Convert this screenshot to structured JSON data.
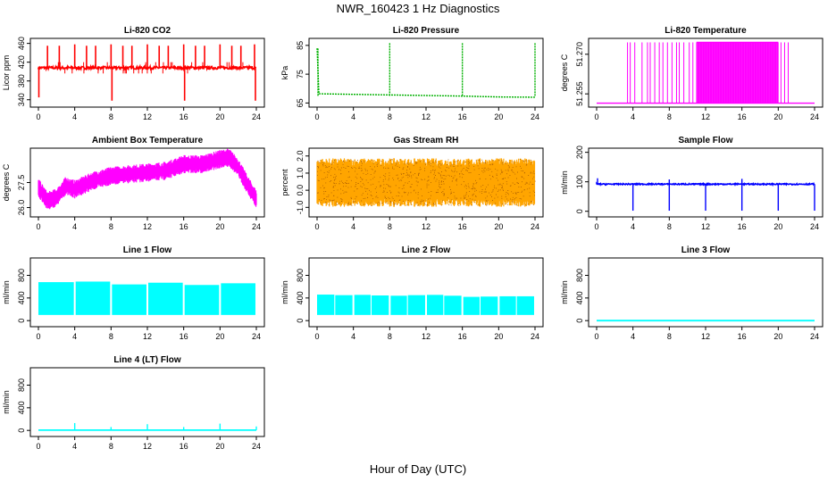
{
  "title": "NWR_160423  1 Hz Diagnostics",
  "xlabel": "Hour of Day (UTC)",
  "colors": {
    "red": "#ff0000",
    "green": "#00b000",
    "magenta": "#ff00ff",
    "orange": "#ffa500",
    "blue": "#0000ff",
    "cyan": "#00ffff"
  },
  "chart_data": [
    {
      "type": "line",
      "title": "Li-820 CO2",
      "ylabel": "Licor ppm",
      "color": "#ff0000",
      "xticks": [
        0,
        4,
        8,
        12,
        16,
        20,
        24
      ],
      "yticks": [
        "340",
        "380",
        "420",
        "460"
      ],
      "ylim": [
        330,
        465
      ],
      "baseline": 408,
      "spikes": [
        {
          "x": 1.0,
          "y": 455
        },
        {
          "x": 2.3,
          "y": 455
        },
        {
          "x": 4.0,
          "y": 458
        },
        {
          "x": 5.3,
          "y": 455
        },
        {
          "x": 6.3,
          "y": 455
        },
        {
          "x": 8.0,
          "y": 458
        },
        {
          "x": 8.1,
          "y": 338
        },
        {
          "x": 9.3,
          "y": 455
        },
        {
          "x": 10.3,
          "y": 455
        },
        {
          "x": 12.0,
          "y": 458
        },
        {
          "x": 13.3,
          "y": 455
        },
        {
          "x": 14.3,
          "y": 455
        },
        {
          "x": 16.0,
          "y": 458
        },
        {
          "x": 16.1,
          "y": 338
        },
        {
          "x": 17.3,
          "y": 455
        },
        {
          "x": 18.3,
          "y": 455
        },
        {
          "x": 20.0,
          "y": 458
        },
        {
          "x": 21.3,
          "y": 455
        },
        {
          "x": 22.3,
          "y": 455
        },
        {
          "x": 23.8,
          "y": 458
        },
        {
          "x": 23.9,
          "y": 338
        },
        {
          "x": 0.05,
          "y": 345
        }
      ]
    },
    {
      "type": "line",
      "title": "Li-820 Pressure",
      "ylabel": "kPa",
      "color": "#00b000",
      "xticks": [
        0,
        4,
        8,
        12,
        16,
        20,
        24
      ],
      "yticks": [
        "65",
        "75",
        "85"
      ],
      "ylim": [
        64.5,
        86.5
      ],
      "series_points": [
        [
          0,
          84
        ],
        [
          0.2,
          68.2
        ],
        [
          4,
          68.0
        ],
        [
          8,
          67.8
        ],
        [
          12,
          67.6
        ],
        [
          16,
          67.4
        ],
        [
          20,
          67.1
        ],
        [
          24,
          67.0
        ]
      ],
      "spikes": [
        {
          "x": 0.1,
          "y": 84
        },
        {
          "x": 8.0,
          "y": 86
        },
        {
          "x": 16.0,
          "y": 86
        },
        {
          "x": 24.0,
          "y": 86
        }
      ]
    },
    {
      "type": "line",
      "title": "Li-820 Temperature",
      "ylabel": "degrees C",
      "color": "#ff00ff",
      "xticks": [
        0,
        4,
        8,
        12,
        16,
        20,
        24
      ],
      "yticks": [
        "51.255",
        "51.270"
      ],
      "ylim": [
        51.251,
        51.275
      ],
      "baseline": 51.2515,
      "top": 51.2745,
      "dense_range": [
        11,
        20
      ],
      "spike_x": [
        3.4,
        3.7,
        4.2,
        5.0,
        5.6,
        5.9,
        6.4,
        6.9,
        7.3,
        7.8,
        8.3,
        8.8,
        9.1,
        9.6,
        10.2,
        10.6,
        20.3,
        20.7,
        21.1
      ]
    },
    {
      "type": "line",
      "title": "Ambient Box Temperature",
      "ylabel": "degrees C",
      "color": "#ff00ff",
      "xticks": [
        0,
        4,
        8,
        12,
        16,
        20,
        24
      ],
      "yticks": [
        "26.0",
        "27.5"
      ],
      "ylim": [
        25.6,
        29.4
      ],
      "series_points": [
        [
          0,
          27.2
        ],
        [
          1,
          26.4
        ],
        [
          2,
          26.6
        ],
        [
          3,
          27.3
        ],
        [
          4,
          27.1
        ],
        [
          6,
          27.6
        ],
        [
          8,
          27.9
        ],
        [
          10,
          28.0
        ],
        [
          12,
          28.1
        ],
        [
          14,
          28.2
        ],
        [
          16,
          28.6
        ],
        [
          18,
          28.6
        ],
        [
          20,
          28.9
        ],
        [
          21,
          29.0
        ],
        [
          22,
          28.4
        ],
        [
          23,
          27.4
        ],
        [
          24,
          26.5
        ]
      ],
      "amplitude": 0.55
    },
    {
      "type": "line",
      "title": "Gas Stream RH",
      "ylabel": "percent",
      "color": "#ffa500",
      "dotcolor": "#b06000",
      "xticks": [
        0,
        4,
        8,
        12,
        16,
        20,
        24
      ],
      "yticks": [
        "-1.0",
        "0.0",
        "1.0",
        "2.0"
      ],
      "ylim": [
        -1.4,
        2.3
      ],
      "center": 0.45,
      "amplitude": 1.35
    },
    {
      "type": "line",
      "title": "Sample Flow",
      "ylabel": "ml/min",
      "color": "#0000ff",
      "xticks": [
        0,
        4,
        8,
        12,
        16,
        20,
        24
      ],
      "yticks": [
        "0",
        "100",
        "200"
      ],
      "ylim": [
        -10,
        205
      ],
      "baseline": 92,
      "dips": [
        {
          "x": 4.0,
          "y": 2
        },
        {
          "x": 8.0,
          "y": 2
        },
        {
          "x": 12.0,
          "y": 2
        },
        {
          "x": 16.0,
          "y": 2
        },
        {
          "x": 20.0,
          "y": 2
        },
        {
          "x": 24.0,
          "y": 2
        }
      ],
      "peaks": [
        {
          "x": 0.1,
          "y": 112
        },
        {
          "x": 8.0,
          "y": 108
        },
        {
          "x": 16.0,
          "y": 110
        }
      ]
    },
    {
      "type": "area",
      "title": "Line 1 Flow",
      "ylabel": "ml/min",
      "color": "#00ffff",
      "xticks": [
        0,
        4,
        8,
        12,
        16,
        20,
        24
      ],
      "yticks": [
        "0",
        "400",
        "800"
      ],
      "ylim": [
        -60,
        1060
      ],
      "bands": [
        {
          "x0": 0,
          "x1": 3.9,
          "low": 100,
          "high": 680
        },
        {
          "x0": 4.1,
          "x1": 7.9,
          "low": 100,
          "high": 690
        },
        {
          "x0": 8.1,
          "x1": 11.9,
          "low": 100,
          "high": 640
        },
        {
          "x0": 12.1,
          "x1": 15.9,
          "low": 100,
          "high": 670
        },
        {
          "x0": 16.1,
          "x1": 19.9,
          "low": 100,
          "high": 630
        },
        {
          "x0": 20.1,
          "x1": 23.9,
          "low": 100,
          "high": 660
        }
      ]
    },
    {
      "type": "area",
      "title": "Line 2 Flow",
      "ylabel": "ml/min",
      "color": "#00ffff",
      "xticks": [
        0,
        4,
        8,
        12,
        16,
        20,
        24
      ],
      "yticks": [
        "0",
        "400",
        "800"
      ],
      "ylim": [
        -60,
        1060
      ],
      "bands": [
        {
          "x0": 0,
          "x1": 1.9,
          "low": 100,
          "high": 460
        },
        {
          "x0": 2.0,
          "x1": 3.9,
          "low": 100,
          "high": 450
        },
        {
          "x0": 4.1,
          "x1": 5.9,
          "low": 100,
          "high": 455
        },
        {
          "x0": 6.0,
          "x1": 7.9,
          "low": 100,
          "high": 445
        },
        {
          "x0": 8.1,
          "x1": 9.9,
          "low": 100,
          "high": 440
        },
        {
          "x0": 10.0,
          "x1": 11.9,
          "low": 100,
          "high": 450
        },
        {
          "x0": 12.1,
          "x1": 13.9,
          "low": 100,
          "high": 455
        },
        {
          "x0": 14.0,
          "x1": 15.9,
          "low": 100,
          "high": 440
        },
        {
          "x0": 16.1,
          "x1": 17.9,
          "low": 100,
          "high": 420
        },
        {
          "x0": 18.0,
          "x1": 19.9,
          "low": 100,
          "high": 425
        },
        {
          "x0": 20.1,
          "x1": 21.9,
          "low": 100,
          "high": 430
        },
        {
          "x0": 22.0,
          "x1": 23.9,
          "low": 100,
          "high": 430
        }
      ]
    },
    {
      "type": "line",
      "title": "Line 3 Flow",
      "ylabel": "ml/min",
      "color": "#00ffff",
      "xticks": [
        0,
        4,
        8,
        12,
        16,
        20,
        24
      ],
      "yticks": [
        "0",
        "400",
        "800"
      ],
      "ylim": [
        -60,
        1060
      ],
      "baseline": 0
    },
    {
      "type": "line",
      "title": "Line 4 (LT) Flow",
      "ylabel": "ml/min",
      "color": "#00ffff",
      "xticks": [
        0,
        4,
        8,
        12,
        16,
        20,
        24
      ],
      "yticks": [
        "0",
        "400",
        "800"
      ],
      "ylim": [
        -60,
        1060
      ],
      "baseline": 5,
      "peaks": [
        {
          "x": 4.0,
          "y": 130
        },
        {
          "x": 8.0,
          "y": 60
        },
        {
          "x": 12.0,
          "y": 110
        },
        {
          "x": 16.0,
          "y": 60
        },
        {
          "x": 20.0,
          "y": 120
        },
        {
          "x": 24.0,
          "y": 70
        }
      ]
    }
  ]
}
